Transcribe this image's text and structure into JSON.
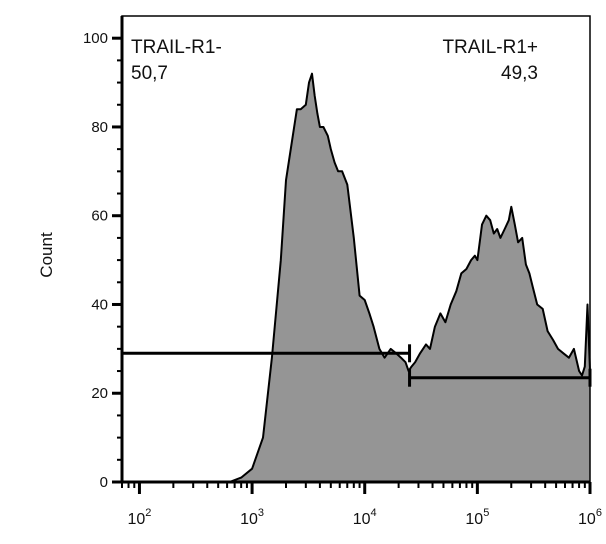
{
  "chart_data": {
    "type": "area",
    "title": "",
    "xlabel": "",
    "ylabel": "Count",
    "x_scale": "log",
    "xlim": [
      70,
      1000000
    ],
    "ylim": [
      0,
      105
    ],
    "yticks": [
      0,
      20,
      40,
      60,
      80,
      100
    ],
    "xticks": [
      {
        "value": 100,
        "base": "10",
        "exp": "2"
      },
      {
        "value": 1000,
        "base": "10",
        "exp": "3"
      },
      {
        "value": 10000,
        "base": "10",
        "exp": "4"
      },
      {
        "value": 100000,
        "base": "10",
        "exp": "5"
      },
      {
        "value": 1000000,
        "base": "10",
        "exp": "6"
      }
    ],
    "grid": false,
    "fill_color": "#959595",
    "line_color": "#000000",
    "series": [
      {
        "x": [
          630,
          800,
          1000,
          1250,
          1500,
          1800,
          2000,
          2300,
          2500,
          2700,
          3000,
          3200,
          3400,
          3600,
          3800,
          4000,
          4300,
          4700,
          5000,
          5400,
          5800,
          6300,
          7000,
          8000,
          9000,
          10000,
          11000,
          12000,
          13500,
          15000,
          17000,
          19000,
          21000,
          23000,
          24500,
          26000,
          28000,
          31000,
          35000,
          38000,
          42000,
          47000,
          52000,
          58000,
          65000,
          72000,
          80000,
          88000,
          95000,
          100000,
          110000,
          120000,
          130000,
          140000,
          150000,
          160000,
          175000,
          190000,
          200000,
          215000,
          230000,
          250000,
          270000,
          290000,
          310000,
          340000,
          380000,
          420000,
          470000,
          520000,
          580000,
          650000,
          720000,
          800000,
          850000,
          900000,
          950000,
          1000000
        ],
        "y": [
          0,
          1,
          3,
          10,
          28,
          50,
          68,
          78,
          84,
          84,
          85,
          90,
          92,
          87,
          83,
          80,
          80,
          78,
          75,
          72,
          70,
          70,
          67,
          55,
          42,
          41,
          38,
          35,
          30,
          28,
          30,
          29,
          28,
          27,
          25,
          26,
          27,
          29,
          31,
          30,
          35,
          38,
          36,
          40,
          43,
          47,
          48,
          50,
          51,
          50,
          58,
          60,
          59,
          56,
          57,
          55,
          57,
          59,
          62,
          58,
          54,
          55,
          49,
          47,
          44,
          40,
          39,
          34,
          32,
          30,
          29,
          28,
          30,
          25,
          24,
          26,
          40,
          25
        ]
      }
    ],
    "gates": [
      {
        "name": "TRAIL-R1-",
        "percent": "50,7",
        "x_start": 70,
        "x_end": 25000,
        "y": 29
      },
      {
        "name": "TRAIL-R1+",
        "percent": "49,3",
        "x_start": 25000,
        "x_end": 1000000,
        "y": 23.5
      }
    ]
  }
}
